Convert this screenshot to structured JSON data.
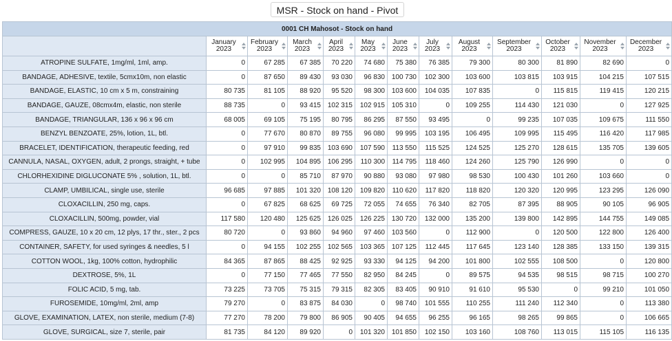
{
  "window": {
    "title": "MSR - Stock on hand - Pivot table"
  },
  "table": {
    "title": "0001 CH Mahosot - Stock on hand",
    "columns": [
      {
        "l1": "January",
        "l2": "2023"
      },
      {
        "l1": "February",
        "l2": "2023"
      },
      {
        "l1": "March",
        "l2": "2023"
      },
      {
        "l1": "April",
        "l2": "2023"
      },
      {
        "l1": "May",
        "l2": "2023"
      },
      {
        "l1": "June",
        "l2": "2023"
      },
      {
        "l1": "July",
        "l2": "2023"
      },
      {
        "l1": "August",
        "l2": "2023"
      },
      {
        "l1": "September",
        "l2": "2023"
      },
      {
        "l1": "October",
        "l2": "2023"
      },
      {
        "l1": "November",
        "l2": "2023"
      },
      {
        "l1": "December",
        "l2": "2023"
      }
    ],
    "rows": [
      {
        "name": "ATROPINE SULFATE, 1mg/ml, 1ml, amp.",
        "values": [
          "0",
          "67 285",
          "67 385",
          "70 220",
          "74 680",
          "75 380",
          "76 385",
          "79 300",
          "80 300",
          "81 890",
          "82 690",
          "0"
        ]
      },
      {
        "name": "BANDAGE, ADHESIVE, textile, 5cmx10m, non elastic",
        "values": [
          "0",
          "87 650",
          "89 430",
          "93 030",
          "96 830",
          "100 730",
          "102 300",
          "103 600",
          "103 815",
          "103 915",
          "104 215",
          "107 515"
        ]
      },
      {
        "name": "BANDAGE, ELASTIC, 10 cm x 5 m, constraining",
        "values": [
          "80 735",
          "81 105",
          "88 920",
          "95 520",
          "98 300",
          "103 600",
          "104 035",
          "107 835",
          "0",
          "115 815",
          "119 415",
          "120 215"
        ]
      },
      {
        "name": "BANDAGE, GAUZE, 08cmx4m, elastic, non sterile",
        "values": [
          "88 735",
          "0",
          "93 415",
          "102 315",
          "102 915",
          "105 310",
          "0",
          "109 255",
          "114 430",
          "121 030",
          "0",
          "127 925"
        ]
      },
      {
        "name": "BANDAGE, TRIANGULAR, 136 x 96 x 96 cm",
        "values": [
          "68 005",
          "69 105",
          "75 195",
          "80 795",
          "86 295",
          "87 550",
          "93 495",
          "0",
          "99 235",
          "107 035",
          "109 675",
          "111 550"
        ]
      },
      {
        "name": "BENZYL BENZOATE, 25%, lotion, 1L, btl.",
        "values": [
          "0",
          "77 670",
          "80 870",
          "89 755",
          "96 080",
          "99 995",
          "103 195",
          "106 495",
          "109 995",
          "115 495",
          "116 420",
          "117 985"
        ]
      },
      {
        "name": "BRACELET, IDENTIFICATION, therapeutic feeding, red",
        "values": [
          "0",
          "97 910",
          "99 835",
          "103 690",
          "107 590",
          "113 550",
          "115 525",
          "124 525",
          "125 270",
          "128 615",
          "135 705",
          "139 605"
        ]
      },
      {
        "name": "CANNULA, NASAL, OXYGEN, adult, 2 prongs, straight, + tube",
        "values": [
          "0",
          "102 995",
          "104 895",
          "106 295",
          "110 300",
          "114 795",
          "118 460",
          "124 260",
          "125 790",
          "126 990",
          "0",
          "0"
        ]
      },
      {
        "name": "CHLORHEXIDINE DIGLUCONATE 5% , solution, 1L, btl.",
        "values": [
          "0",
          "0",
          "85 710",
          "87 970",
          "90 880",
          "93 080",
          "97 980",
          "98 530",
          "100 430",
          "101 260",
          "103 660",
          "0"
        ]
      },
      {
        "name": "CLAMP, UMBILICAL, single use, sterile",
        "values": [
          "96 685",
          "97 885",
          "101 320",
          "108 120",
          "109 820",
          "110 620",
          "117 820",
          "118 820",
          "120 320",
          "120 995",
          "123 295",
          "126 090"
        ]
      },
      {
        "name": "CLOXACILLIN, 250 mg, caps.",
        "values": [
          "0",
          "67 825",
          "68 625",
          "69 725",
          "72 055",
          "74 655",
          "76 340",
          "82 705",
          "87 395",
          "88 905",
          "90 105",
          "96 905"
        ]
      },
      {
        "name": "CLOXACILLIN, 500mg, powder, vial",
        "values": [
          "117 580",
          "120 480",
          "125 625",
          "126 025",
          "126 225",
          "130 720",
          "132 000",
          "135 200",
          "139 800",
          "142 895",
          "144 755",
          "149 085"
        ]
      },
      {
        "name": "COMPRESS, GAUZE, 10 x 20 cm, 12 plys, 17 thr., ster., 2 pcs",
        "values": [
          "80 720",
          "0",
          "93 860",
          "94 960",
          "97 460",
          "103 560",
          "0",
          "112 900",
          "0",
          "120 500",
          "122 800",
          "126 400"
        ]
      },
      {
        "name": "CONTAINER, SAFETY, for used syringes & needles, 5 l",
        "values": [
          "0",
          "94 155",
          "102 255",
          "102 565",
          "103 365",
          "107 125",
          "112 445",
          "117 645",
          "123 140",
          "128 385",
          "133 150",
          "139 315"
        ]
      },
      {
        "name": "COTTON WOOL, 1kg, 100% cotton, hydrophilic",
        "values": [
          "84 365",
          "87 865",
          "88 425",
          "92 925",
          "93 330",
          "94 125",
          "94 200",
          "101 800",
          "102 555",
          "108 500",
          "0",
          "120 800"
        ]
      },
      {
        "name": "DEXTROSE, 5%, 1L",
        "values": [
          "0",
          "77 150",
          "77 465",
          "77 550",
          "82 950",
          "84 245",
          "0",
          "89 575",
          "94 535",
          "98 515",
          "98 715",
          "100 270"
        ]
      },
      {
        "name": "FOLIC ACID, 5 mg, tab.",
        "values": [
          "73 225",
          "73 705",
          "75 315",
          "79 315",
          "82 305",
          "83 405",
          "90 910",
          "91 610",
          "95 530",
          "0",
          "99 210",
          "101 050"
        ]
      },
      {
        "name": "FUROSEMIDE, 10mg/ml, 2ml, amp",
        "values": [
          "79 270",
          "0",
          "83 875",
          "84 030",
          "0",
          "98 740",
          "101 555",
          "110 255",
          "111 240",
          "112 340",
          "0",
          "113 380"
        ]
      },
      {
        "name": "GLOVE, EXAMINATION, LATEX, non sterile, medium (7-8)",
        "values": [
          "77 270",
          "78 200",
          "79 800",
          "86 905",
          "90 405",
          "94 655",
          "96 255",
          "96 165",
          "98 265",
          "99 865",
          "0",
          "106 665"
        ]
      },
      {
        "name": "GLOVE, SURGICAL, size 7, sterile, pair",
        "values": [
          "81 735",
          "84 120",
          "89 920",
          "0",
          "101 320",
          "101 850",
          "102 150",
          "103 160",
          "108 760",
          "113 015",
          "115 105",
          "116 135"
        ]
      }
    ]
  }
}
